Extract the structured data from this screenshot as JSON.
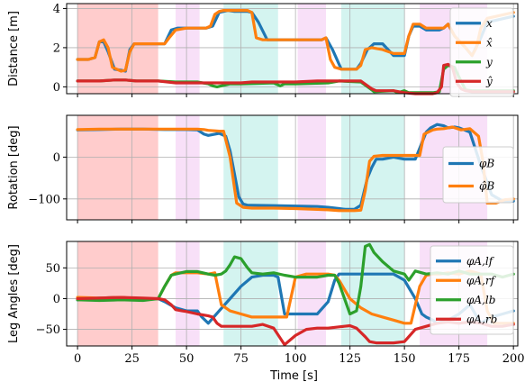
{
  "chart_data": [
    {
      "type": "line",
      "ylabel": "Distance [m]",
      "xlabel": "",
      "xlim": [
        -5,
        202
      ],
      "ylim": [
        -0.35,
        4.25
      ],
      "yticks": [
        0,
        2,
        4
      ],
      "yticklabels": [
        "0",
        "2",
        "4"
      ],
      "xticks": [
        0,
        25,
        50,
        75,
        100,
        125,
        150,
        175,
        200
      ],
      "grid": true,
      "legend_position": "right",
      "series": [
        {
          "name": "x",
          "color": "#1f77b4",
          "x": [
            0,
            5,
            8,
            10,
            12,
            14,
            17,
            20,
            22,
            24,
            26,
            35,
            38,
            40,
            43,
            46,
            50,
            54,
            57,
            59,
            62,
            65,
            67,
            69,
            72,
            75,
            78,
            80,
            83,
            87,
            90,
            93,
            96,
            98,
            101,
            104,
            108,
            112,
            114,
            117,
            121,
            125,
            128,
            130,
            133,
            136,
            140,
            145,
            150,
            152,
            154,
            157,
            160,
            163,
            166,
            168,
            170,
            173,
            178,
            181,
            185,
            188,
            200
          ],
          "y": [
            1.4,
            1.4,
            1.5,
            2.3,
            2.3,
            1.8,
            0.9,
            0.85,
            0.8,
            1.9,
            2.2,
            2.2,
            2.2,
            2.2,
            2.9,
            3.0,
            3.0,
            3.0,
            3.0,
            3.0,
            3.1,
            3.8,
            3.85,
            3.9,
            3.85,
            3.85,
            3.85,
            3.8,
            3.3,
            2.4,
            2.4,
            2.4,
            2.4,
            2.4,
            2.4,
            2.4,
            2.4,
            2.4,
            2.5,
            1.9,
            0.9,
            0.9,
            0.9,
            1.2,
            1.9,
            2.2,
            2.2,
            1.6,
            1.6,
            2.6,
            3.1,
            3.1,
            2.9,
            2.9,
            2.9,
            3.0,
            3.2,
            2.6,
            2.0,
            1.6,
            2.5,
            3.3,
            3.6
          ]
        },
        {
          "name": "x̂",
          "color": "#ff7f0e",
          "x": [
            0,
            5,
            8,
            10,
            12,
            14,
            16,
            18,
            20,
            22,
            24,
            26,
            35,
            38,
            40,
            42,
            45,
            50,
            54,
            57,
            59,
            61,
            63,
            65,
            67,
            69,
            72,
            75,
            78,
            80,
            82,
            85,
            90,
            93,
            96,
            98,
            101,
            104,
            108,
            112,
            114,
            116,
            118,
            121,
            125,
            128,
            130,
            132,
            135,
            140,
            145,
            150,
            152,
            154,
            157,
            160,
            163,
            166,
            168,
            170,
            173,
            178,
            181,
            183,
            185,
            188,
            200
          ],
          "y": [
            1.4,
            1.4,
            1.5,
            2.3,
            2.4,
            2.0,
            1.0,
            0.9,
            0.8,
            0.85,
            1.8,
            2.2,
            2.2,
            2.2,
            2.2,
            2.5,
            2.9,
            3.0,
            3.0,
            3.0,
            3.0,
            3.1,
            3.7,
            3.85,
            3.9,
            3.9,
            3.9,
            3.9,
            3.9,
            3.8,
            2.5,
            2.4,
            2.4,
            2.4,
            2.4,
            2.4,
            2.4,
            2.4,
            2.4,
            2.4,
            2.5,
            1.4,
            1.0,
            0.9,
            0.9,
            0.9,
            1.1,
            1.9,
            2.0,
            1.9,
            1.7,
            1.7,
            2.6,
            3.2,
            3.2,
            3.0,
            3.0,
            3.0,
            3.0,
            3.2,
            2.6,
            2.0,
            1.6,
            2.0,
            3.0,
            3.5,
            3.8
          ]
        },
        {
          "name": "y",
          "color": "#2ca02c",
          "x": [
            0,
            10,
            17,
            22,
            27,
            37,
            45,
            55,
            60,
            62,
            64,
            66,
            70,
            75,
            90,
            93,
            95,
            100,
            115,
            120,
            130,
            135,
            136,
            145,
            147,
            150,
            152,
            157,
            163,
            166,
            168,
            170,
            173,
            175,
            178,
            181,
            200
          ],
          "y": [
            0.3,
            0.3,
            0.35,
            0.35,
            0.3,
            0.3,
            0.25,
            0.25,
            0.15,
            0.05,
            0.0,
            0.05,
            0.15,
            0.15,
            0.2,
            0.05,
            0.15,
            0.15,
            0.2,
            0.3,
            0.25,
            -0.15,
            -0.25,
            -0.2,
            -0.3,
            -0.2,
            -0.3,
            -0.3,
            -0.3,
            -0.25,
            0.9,
            1.1,
            1.0,
            0.5,
            -0.15,
            -0.2,
            -0.2
          ]
        },
        {
          "name": "ŷ",
          "color": "#d62728",
          "x": [
            0,
            10,
            17,
            22,
            27,
            37,
            45,
            55,
            60,
            65,
            70,
            75,
            80,
            90,
            95,
            100,
            110,
            120,
            130,
            135,
            137,
            145,
            150,
            155,
            160,
            163,
            165,
            167,
            168,
            170,
            172,
            174,
            176,
            178,
            181,
            200
          ],
          "y": [
            0.3,
            0.3,
            0.35,
            0.35,
            0.3,
            0.3,
            0.2,
            0.2,
            0.2,
            0.2,
            0.2,
            0.2,
            0.25,
            0.25,
            0.25,
            0.25,
            0.3,
            0.3,
            0.3,
            -0.1,
            -0.2,
            -0.2,
            -0.3,
            -0.35,
            -0.35,
            -0.35,
            -0.3,
            0.0,
            1.1,
            1.15,
            1.0,
            0.2,
            -0.1,
            -0.2,
            -0.25,
            -0.25
          ]
        }
      ],
      "legend": [
        "x",
        "x̂",
        "y",
        "ŷ"
      ]
    },
    {
      "type": "line",
      "ylabel": "Rotation [deg]",
      "xlabel": "",
      "xlim": [
        -5,
        202
      ],
      "ylim": [
        -150,
        100
      ],
      "yticks": [
        -100,
        0
      ],
      "yticklabels": [
        "−100",
        "0"
      ],
      "xticks": [
        0,
        25,
        50,
        75,
        100,
        125,
        150,
        175,
        200
      ],
      "grid": true,
      "legend_position": "center right",
      "series": [
        {
          "name": "φB",
          "color": "#1f77b4",
          "x": [
            0,
            10,
            20,
            30,
            40,
            50,
            55,
            58,
            60,
            63,
            65,
            68,
            70,
            72,
            74,
            76,
            78,
            80,
            90,
            100,
            110,
            115,
            120,
            123,
            125,
            127,
            130,
            133,
            135,
            137,
            140,
            145,
            150,
            155,
            160,
            162,
            165,
            168,
            170,
            173,
            175,
            180,
            185,
            190,
            195,
            200
          ],
          "y": [
            65,
            66,
            67,
            67,
            66,
            66,
            65,
            55,
            52,
            55,
            57,
            50,
            15,
            -40,
            -95,
            -112,
            -115,
            -115,
            -116,
            -117,
            -118,
            -120,
            -123,
            -125,
            -125,
            -125,
            -115,
            -50,
            -25,
            -5,
            -5,
            0,
            -5,
            -5,
            60,
            70,
            78,
            75,
            70,
            72,
            70,
            60,
            -20,
            -90,
            -105,
            -105
          ]
        },
        {
          "name": "φ̂B",
          "color": "#ff7f0e",
          "x": [
            0,
            10,
            20,
            30,
            40,
            50,
            55,
            58,
            60,
            63,
            65,
            67,
            70,
            73,
            76,
            80,
            90,
            100,
            110,
            115,
            120,
            123,
            125,
            127,
            130,
            132,
            134,
            136,
            140,
            145,
            150,
            155,
            157,
            159,
            163,
            165,
            168,
            172,
            176,
            180,
            184,
            186,
            188,
            192,
            196,
            200
          ],
          "y": [
            66,
            67,
            67,
            67,
            67,
            67,
            67,
            66,
            64,
            63,
            62,
            62,
            0,
            -110,
            -120,
            -122,
            -122,
            -123,
            -125,
            -126,
            -128,
            -128,
            -128,
            -128,
            -127,
            -80,
            -10,
            2,
            4,
            4,
            4,
            4,
            4,
            55,
            65,
            67,
            68,
            72,
            65,
            68,
            50,
            -10,
            -110,
            -110,
            -102,
            -100
          ]
        }
      ],
      "legend": [
        "φB",
        "φ̂B"
      ]
    },
    {
      "type": "line",
      "ylabel": "Leg Angles [deg]",
      "xlabel": "Time [s]",
      "xlim": [
        -5,
        202
      ],
      "ylim": [
        -77,
        93
      ],
      "yticks": [
        -50,
        0,
        50
      ],
      "yticklabels": [
        "−50",
        "0",
        "50"
      ],
      "xticks": [
        0,
        25,
        50,
        75,
        100,
        125,
        150,
        175,
        200
      ],
      "xticklabels": [
        "0",
        "25",
        "50",
        "75",
        "100",
        "125",
        "150",
        "175",
        "200"
      ],
      "grid": true,
      "legend_position": "right",
      "series": [
        {
          "name": "φA,lf",
          "color": "#1f77b4",
          "x": [
            0,
            10,
            20,
            30,
            37,
            40,
            45,
            50,
            55,
            57,
            60,
            65,
            70,
            75,
            80,
            85,
            90,
            92,
            95,
            100,
            105,
            110,
            115,
            118,
            120,
            125,
            130,
            135,
            140,
            145,
            150,
            155,
            158,
            160,
            163,
            165,
            170,
            175,
            180,
            185,
            190,
            195,
            200
          ],
          "y": [
            -2,
            1,
            2,
            -1,
            0,
            -5,
            -15,
            -20,
            -20,
            -30,
            -40,
            -20,
            0,
            20,
            35,
            38,
            38,
            35,
            -25,
            -25,
            -25,
            -25,
            -5,
            30,
            40,
            40,
            40,
            40,
            40,
            40,
            30,
            0,
            -25,
            -30,
            -35,
            -40,
            -35,
            -25,
            -10,
            -40,
            -30,
            -25,
            -20
          ]
        },
        {
          "name": "φA,rf",
          "color": "#ff7f0e",
          "x": [
            0,
            10,
            20,
            30,
            37,
            40,
            43,
            45,
            50,
            55,
            60,
            63,
            66,
            70,
            75,
            80,
            85,
            90,
            93,
            96,
            100,
            105,
            110,
            115,
            118,
            120,
            125,
            130,
            135,
            140,
            145,
            150,
            153,
            157,
            160,
            163,
            166,
            170,
            175,
            180,
            185,
            188,
            191,
            195,
            200
          ],
          "y": [
            2,
            1,
            2,
            -1,
            0,
            20,
            38,
            42,
            42,
            42,
            40,
            42,
            -10,
            -20,
            -25,
            -30,
            -30,
            -30,
            -30,
            -30,
            35,
            40,
            40,
            40,
            38,
            30,
            0,
            -15,
            -25,
            -30,
            -35,
            -40,
            -40,
            20,
            38,
            40,
            40,
            42,
            40,
            45,
            40,
            -20,
            -40,
            -40,
            -40
          ]
        },
        {
          "name": "φA,lb",
          "color": "#2ca02c",
          "x": [
            0,
            10,
            20,
            30,
            37,
            40,
            43,
            45,
            50,
            55,
            60,
            63,
            66,
            68,
            70,
            72,
            75,
            78,
            80,
            85,
            90,
            95,
            100,
            105,
            110,
            115,
            118,
            120,
            125,
            128,
            130,
            132,
            134,
            136,
            140,
            145,
            150,
            152,
            155,
            160,
            165,
            170,
            175,
            180,
            185,
            190,
            195,
            200
          ],
          "y": [
            -2,
            -3,
            -2,
            -3,
            0,
            20,
            38,
            40,
            44,
            44,
            40,
            38,
            40,
            45,
            55,
            68,
            65,
            50,
            42,
            40,
            42,
            38,
            35,
            35,
            35,
            38,
            38,
            25,
            -25,
            -20,
            20,
            85,
            88,
            75,
            60,
            45,
            40,
            30,
            45,
            40,
            42,
            40,
            45,
            40,
            40,
            40,
            35,
            40
          ]
        },
        {
          "name": "φA,rb",
          "color": "#d62728",
          "x": [
            0,
            10,
            20,
            30,
            37,
            40,
            43,
            45,
            48,
            50,
            55,
            60,
            62,
            64,
            66,
            70,
            75,
            80,
            85,
            90,
            95,
            100,
            105,
            110,
            115,
            120,
            125,
            128,
            130,
            132,
            134,
            137,
            140,
            145,
            150,
            155,
            160,
            165,
            170,
            175,
            180,
            185,
            190,
            195,
            200
          ],
          "y": [
            0,
            1,
            2,
            1,
            0,
            -2,
            -10,
            -18,
            -20,
            -21,
            -25,
            -28,
            -30,
            -40,
            -45,
            -45,
            -45,
            -45,
            -42,
            -48,
            -75,
            -60,
            -50,
            -48,
            -48,
            -46,
            -44,
            -48,
            -55,
            -62,
            -70,
            -72,
            -72,
            -72,
            -70,
            -50,
            -45,
            -40,
            -38,
            -40,
            -38,
            -40,
            -45,
            -45,
            -42
          ]
        }
      ],
      "legend": [
        "φA,lf",
        "φA,rf",
        "φA,lb",
        "φA,rb"
      ]
    }
  ],
  "background_bands": [
    {
      "from": 0,
      "to": 37,
      "color": "#ffcccc"
    },
    {
      "from": 45,
      "to": 56,
      "color": "#f8e0f8"
    },
    {
      "from": 67,
      "to": 92,
      "color": "#d4f4f0"
    },
    {
      "from": 101,
      "to": 114,
      "color": "#f8e0f8"
    },
    {
      "from": 121,
      "to": 150,
      "color": "#d4f4f0"
    },
    {
      "from": 157,
      "to": 188,
      "color": "#f8e0f8"
    }
  ]
}
